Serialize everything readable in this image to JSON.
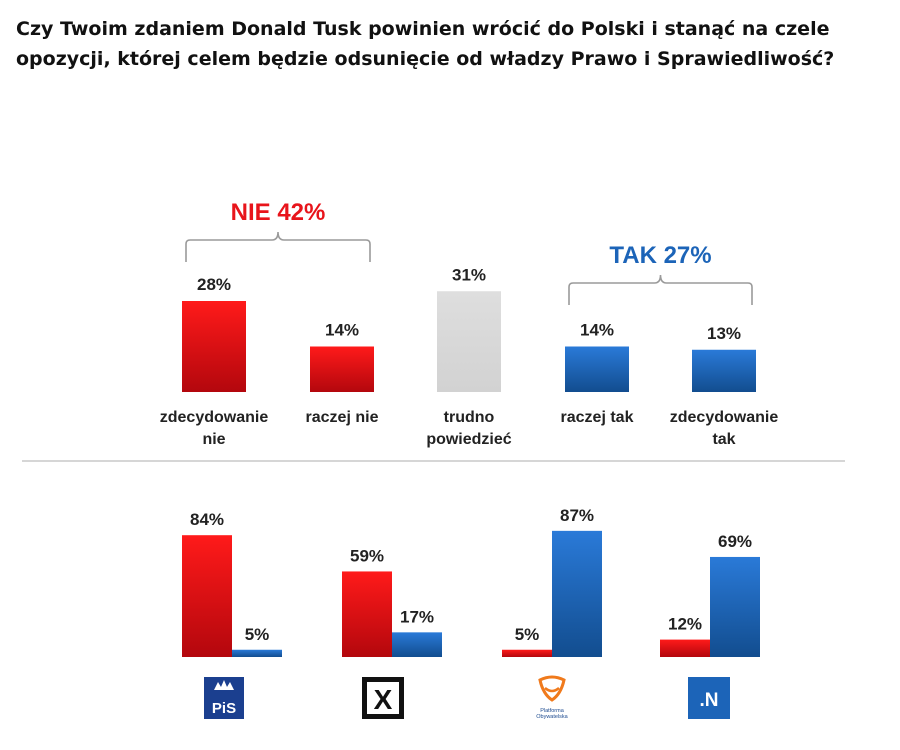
{
  "title_line1": "Czy Twoim zdaniem Donald Tusk powinien wrócić do Polski i stanąć na czele",
  "title_line2": "opozycji, której celem będzie odsunięcie od władzy Prawo i Sprawiedliwość?",
  "colors": {
    "red": "#e8141b",
    "blue": "#1c64b8",
    "gray": "#d9d9d9"
  },
  "chart_data": [
    {
      "type": "bar",
      "categories": [
        [
          "zdecydowanie",
          "nie"
        ],
        [
          "raczej nie"
        ],
        [
          "trudno",
          "powiedzieć"
        ],
        [
          "raczej tak"
        ],
        [
          "zdecydowanie",
          "tak"
        ]
      ],
      "values": [
        28,
        14,
        31,
        14,
        13
      ],
      "value_labels": [
        "28%",
        "14%",
        "31%",
        "14%",
        "13%"
      ],
      "bar_colors": [
        "red",
        "red",
        "gray",
        "blue",
        "blue"
      ],
      "groups": [
        {
          "label": "NIE 42%",
          "color": "red",
          "members": [
            0,
            1
          ]
        },
        {
          "label": "TAK 27%",
          "color": "blue",
          "members": [
            3,
            4
          ]
        }
      ]
    },
    {
      "type": "bar",
      "categories": [
        "PiS",
        "Kukiz'15",
        "Platforma Obywatelska",
        ".N"
      ],
      "series": [
        {
          "color": "red",
          "values": [
            84,
            59,
            5,
            12
          ],
          "labels": [
            "84%",
            "59%",
            "5%",
            "12%"
          ]
        },
        {
          "color": "blue",
          "values": [
            5,
            17,
            87,
            69
          ],
          "labels": [
            "5%",
            "17%",
            "87%",
            "69%"
          ]
        }
      ],
      "logos": [
        {
          "icon": "pis-logo",
          "text": "PiS"
        },
        {
          "icon": "kukiz-logo",
          "text": "X"
        },
        {
          "icon": "po-logo",
          "text": "Platforma Obywatelska"
        },
        {
          "icon": "nowoczesna-logo",
          "text": ".N"
        }
      ]
    }
  ]
}
